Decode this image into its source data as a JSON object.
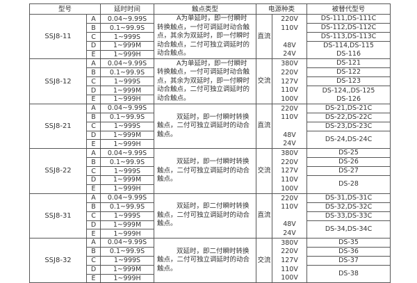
{
  "headers": [
    "型号",
    "延时时间",
    "触点类型",
    "电源种类",
    "被替代型号"
  ],
  "groups": [
    {
      "model": "SSJ8-11",
      "power": "直流",
      "voltages": [
        "220V",
        "110V",
        "",
        "48V",
        "24V"
      ],
      "contact": "A为单延时，即一付瞬时转换触点，一付可调延时动合触点，其余为双延时，即一付瞬时动合触点，二付可独立调延时的动合触点。",
      "replacements": [
        "DS-111,DS-111C",
        "DS-112,DS-112C",
        "DS-113,DS-113C"
      ],
      "replacement_rest": [
        "DS-114,DS-115",
        "DS-116"
      ]
    },
    {
      "model": "SSJ8-12",
      "power": "交流",
      "voltages": [
        "380V",
        "220V",
        "127V",
        "110V",
        "100V"
      ],
      "contact": "A为单延时，即一付瞬时转换触点，一付可调延时动合触点，其余为双延时，即一付瞬时动合触点，二付可独立调延时的动合触点。",
      "replacements": [
        "DS-121",
        "DS-122",
        "DS-123"
      ],
      "replacement_rest": [
        "DS-124,,DS-125",
        "DS-126"
      ]
    },
    {
      "model": "SSJ8-21",
      "power": "直流",
      "voltages": [
        "220V",
        "110V",
        "",
        "48V",
        "24V"
      ],
      "contact": "双延时，即一付瞬时转换触点，二付可独立调延时的动合触点。",
      "replacements": [
        "DS-21,DS-21C",
        "DS-22,DS-22C",
        "DS-23,DS-23C"
      ],
      "replacement_rest": [
        "DS-24,DS-24C"
      ]
    },
    {
      "model": "SSJ8-22",
      "power": "交流",
      "voltages": [
        "380V",
        "220V",
        "127V",
        "110V",
        "100V"
      ],
      "contact": "双延时，即一付瞬时转换触点，二付可独立调延时的动合触点。",
      "replacements": [
        "DS-25",
        "DS-26",
        "DS-27"
      ],
      "replacement_rest": [
        "DS-28"
      ]
    },
    {
      "model": "SSJ8-31",
      "power": "直流",
      "voltages": [
        "220V",
        "110V",
        "",
        "48V",
        "24V"
      ],
      "contact": "双延时，即二付瞬时转换触点，二付可独立调延时的动合触点。",
      "replacements": [
        "DS-31,DS-31C",
        "DS-32,DS-32C",
        "DS-33,DS-33C"
      ],
      "replacement_rest": [
        "DS-34,DS-34C"
      ]
    },
    {
      "model": "SSJ8-32",
      "power": "交流",
      "voltages": [
        "380V",
        "220V",
        "127V",
        "110V",
        "100V"
      ],
      "contact": "双延时，即二付瞬时转换触点，二付可独立调延时的动合触点。",
      "replacements": [
        "DS-35",
        "DS-36",
        "DS-37"
      ],
      "replacement_rest": [
        "DS-38"
      ]
    }
  ],
  "variants": [
    {
      "letter": "A",
      "delay": "0.04~9.99S"
    },
    {
      "letter": "B",
      "delay": "0.1~99.9S"
    },
    {
      "letter": "C",
      "delay": "1~999S"
    },
    {
      "letter": "D",
      "delay": "1~999M"
    },
    {
      "letter": "E",
      "delay": "1~999H"
    }
  ]
}
